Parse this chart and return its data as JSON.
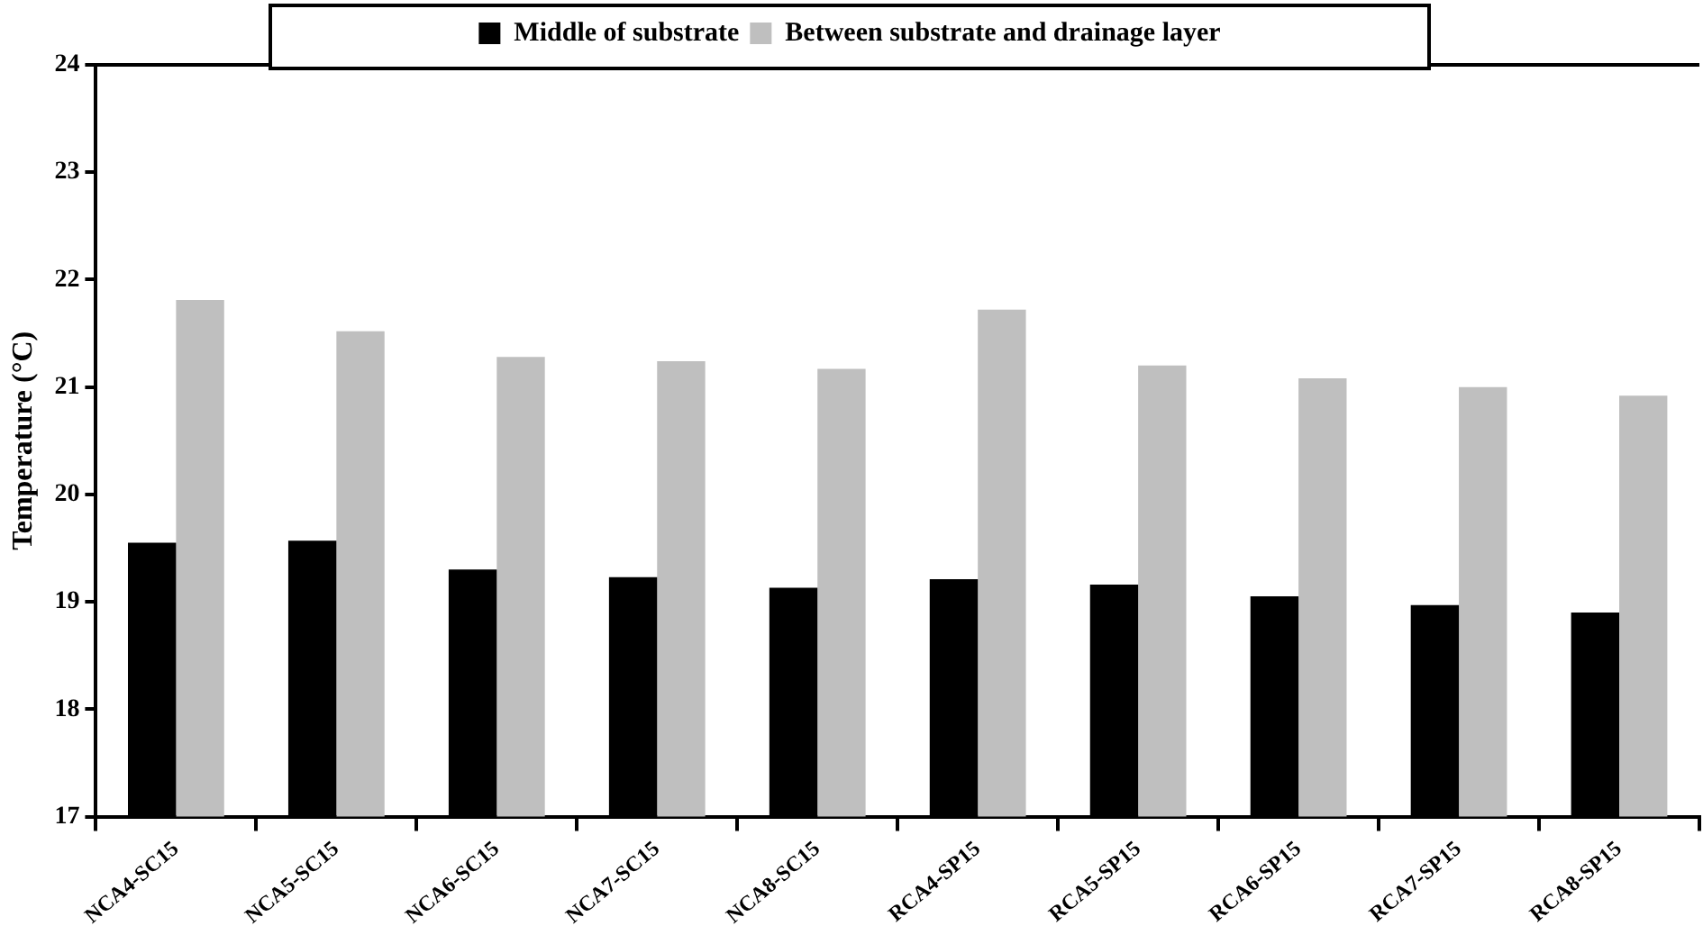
{
  "chart_data": {
    "type": "bar",
    "ylabel": "Temperature (°C)",
    "categories": [
      "NCA4-SC15",
      "NCA5-SC15",
      "NCA6-SC15",
      "NCA7-SC15",
      "NCA8-SC15",
      "RCA4-SP15",
      "RCA5-SP15",
      "RCA6-SP15",
      "RCA7-SP15",
      "RCA8-SP15"
    ],
    "series": [
      {
        "name": "Middle of substrate",
        "color": "#000000",
        "values": [
          19.55,
          19.57,
          19.3,
          19.23,
          19.13,
          19.21,
          19.16,
          19.05,
          18.97,
          18.9
        ]
      },
      {
        "name": "Between substrate and drainage layer",
        "color": "#bfbfbf",
        "values": [
          21.81,
          21.52,
          21.28,
          21.24,
          21.17,
          21.72,
          21.2,
          21.08,
          21.0,
          20.92
        ]
      }
    ],
    "ylim": [
      17,
      24
    ],
    "yticks": [
      17,
      18,
      19,
      20,
      21,
      22,
      23,
      24
    ],
    "grid": false,
    "legend": "top"
  }
}
